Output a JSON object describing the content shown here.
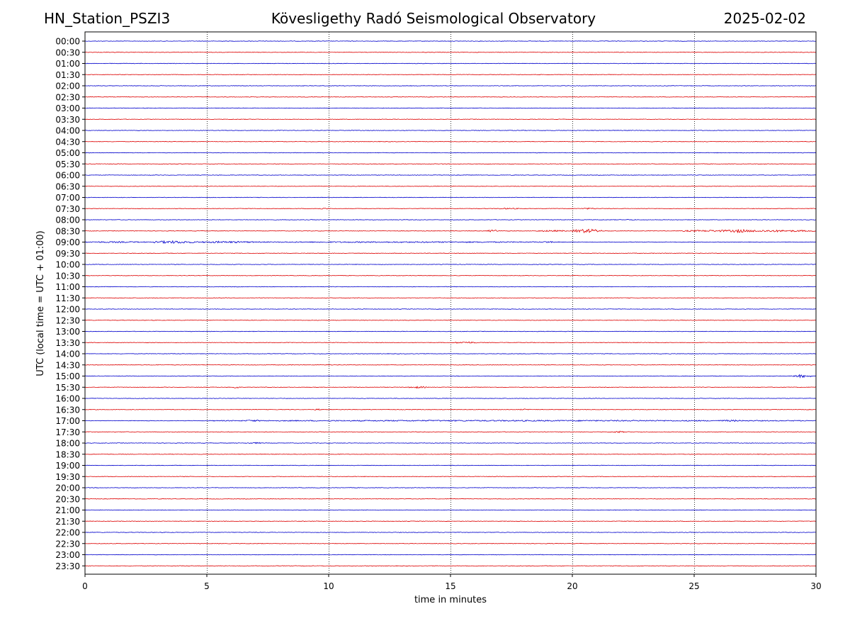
{
  "header": {
    "station": "HN_Station_PSZI3",
    "observatory": "Kövesligethy Radó Seismological Observatory",
    "date": "2025-02-02"
  },
  "chart_data": {
    "type": "line",
    "title": "Kövesligethy Radó Seismological Observatory",
    "xlabel": "time in minutes",
    "ylabel": "UTC (local time = UTC + 01:00)",
    "xlim": [
      0,
      30
    ],
    "x_ticks": [
      0,
      5,
      10,
      15,
      20,
      25,
      30
    ],
    "x_tick_labels": [
      "0",
      "5",
      "10",
      "15",
      "20",
      "25",
      "30"
    ],
    "row_labels": [
      "00:00",
      "00:30",
      "01:00",
      "01:30",
      "02:00",
      "02:30",
      "03:00",
      "03:30",
      "04:00",
      "04:30",
      "05:00",
      "05:30",
      "06:00",
      "06:30",
      "07:00",
      "07:30",
      "08:00",
      "08:30",
      "09:00",
      "09:30",
      "10:00",
      "10:30",
      "11:00",
      "11:30",
      "12:00",
      "12:30",
      "13:00",
      "13:30",
      "14:00",
      "14:30",
      "15:00",
      "15:30",
      "16:00",
      "16:30",
      "17:00",
      "17:30",
      "18:00",
      "18:30",
      "19:00",
      "19:30",
      "20:00",
      "20:30",
      "21:00",
      "21:30",
      "22:00",
      "22:30",
      "23:00",
      "23:30"
    ],
    "trace_colors": [
      "#0000cc",
      "#dd0000"
    ],
    "vertical_grid": true,
    "grid_style": "dotted",
    "events": [
      {
        "row": "07:30",
        "start_min": 9.6,
        "end_min": 10.0,
        "amplitude": 0.6
      },
      {
        "row": "07:30",
        "start_min": 16.9,
        "end_min": 17.8,
        "amplitude": 0.5
      },
      {
        "row": "07:30",
        "start_min": 20.4,
        "end_min": 21.0,
        "amplitude": 0.6
      },
      {
        "row": "08:00",
        "start_min": 22.2,
        "end_min": 22.6,
        "amplitude": 0.4
      },
      {
        "row": "08:30",
        "start_min": 16.5,
        "end_min": 17.0,
        "amplitude": 1.2
      },
      {
        "row": "08:30",
        "start_min": 18.5,
        "end_min": 19.8,
        "amplitude": 0.7
      },
      {
        "row": "08:30",
        "start_min": 20.0,
        "end_min": 21.2,
        "amplitude": 2.3
      },
      {
        "row": "08:30",
        "start_min": 24.5,
        "end_min": 30.0,
        "amplitude": 1.1
      },
      {
        "row": "08:30",
        "start_min": 26.5,
        "end_min": 27.2,
        "amplitude": 2.0
      },
      {
        "row": "09:00",
        "start_min": 0.0,
        "end_min": 2.5,
        "amplitude": 0.6
      },
      {
        "row": "09:00",
        "start_min": 2.8,
        "end_min": 4.5,
        "amplitude": 1.5
      },
      {
        "row": "09:00",
        "start_min": 4.5,
        "end_min": 7.0,
        "amplitude": 0.9
      },
      {
        "row": "09:00",
        "start_min": 7.0,
        "end_min": 19.5,
        "amplitude": 0.5
      },
      {
        "row": "09:00",
        "start_min": 18.8,
        "end_min": 19.2,
        "amplitude": 0.9
      },
      {
        "row": "13:30",
        "start_min": 15.2,
        "end_min": 16.1,
        "amplitude": 0.9
      },
      {
        "row": "15:00",
        "start_min": 29.0,
        "end_min": 29.8,
        "amplitude": 1.6
      },
      {
        "row": "15:30",
        "start_min": 6.1,
        "end_min": 6.3,
        "amplitude": 1.5
      },
      {
        "row": "15:30",
        "start_min": 13.3,
        "end_min": 14.0,
        "amplitude": 1.0
      },
      {
        "row": "16:30",
        "start_min": 9.4,
        "end_min": 9.8,
        "amplitude": 0.6
      },
      {
        "row": "16:30",
        "start_min": 17.8,
        "end_min": 18.4,
        "amplitude": 0.5
      },
      {
        "row": "17:00",
        "start_min": 5.0,
        "end_min": 30.0,
        "amplitude": 0.5
      },
      {
        "row": "17:00",
        "start_min": 6.6,
        "end_min": 7.2,
        "amplitude": 0.9
      },
      {
        "row": "17:00",
        "start_min": 26.0,
        "end_min": 27.0,
        "amplitude": 0.8
      },
      {
        "row": "17:30",
        "start_min": 21.7,
        "end_min": 22.1,
        "amplitude": 0.9
      },
      {
        "row": "18:00",
        "start_min": 6.6,
        "end_min": 7.3,
        "amplitude": 0.6
      }
    ]
  }
}
